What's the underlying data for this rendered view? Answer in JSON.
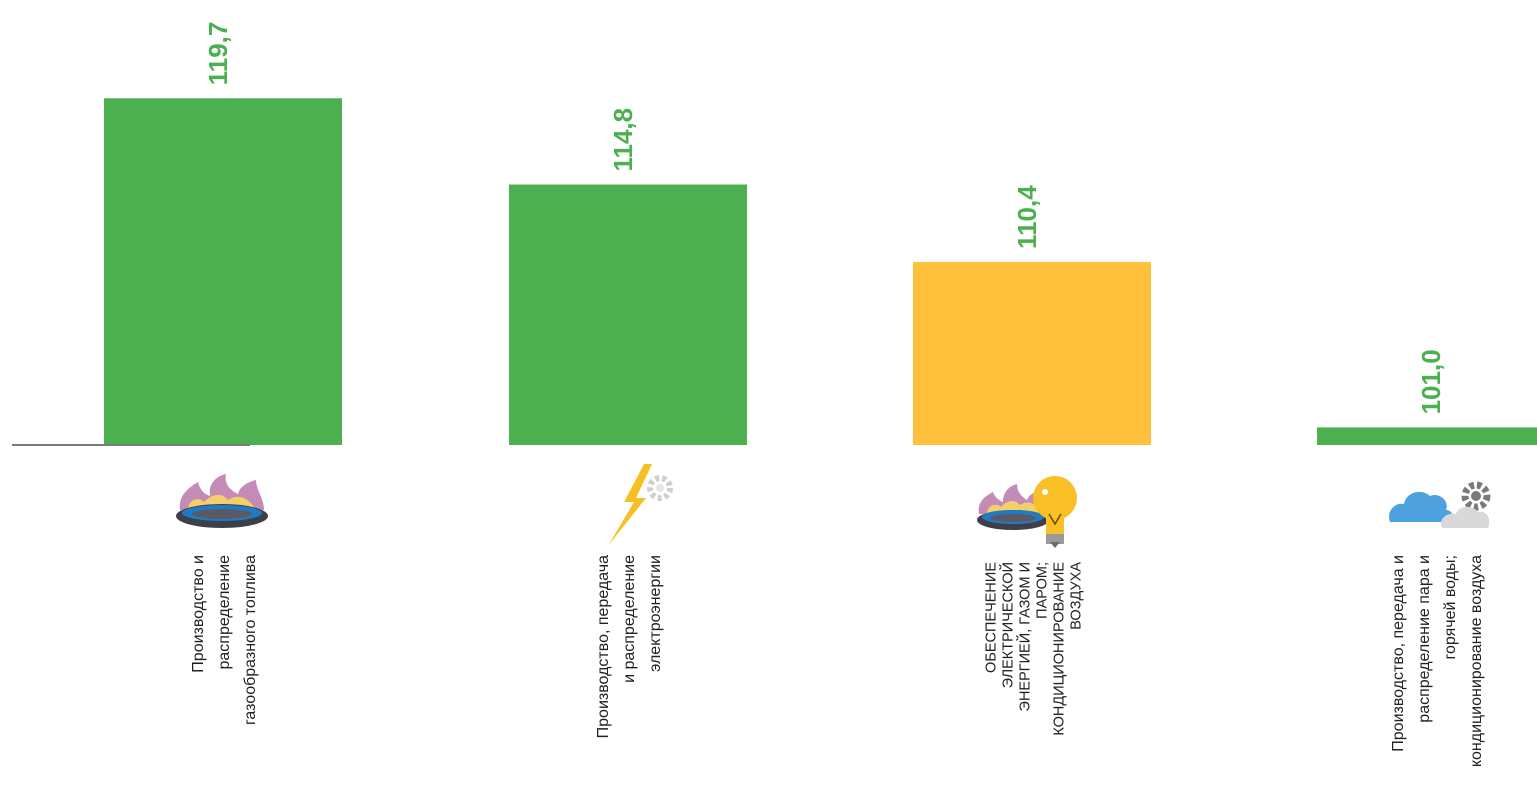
{
  "chart_data": {
    "type": "bar",
    "categories": [
      "Производство и распределение газообразного топлива",
      "Производство, передача и распределение электроэнергии",
      "ОБЕСПЕЧЕНИЕ ЭЛЕКТРИЧЕСКОЙ ЭНЕРГИЕЙ, ГАЗОМ И ПАРОМ; КОНДИЦИОНИРОВАНИЕ ВОЗДУХА",
      "Производство, передача и распределение пара и горячей воды; кондиционирование воздуха"
    ],
    "category_label_lines": [
      [
        "Производство и",
        "распределение",
        "газообразного топлива"
      ],
      [
        "Производство, передача",
        "и распределение",
        "электроэнергии"
      ],
      [
        "ОБЕСПЕЧЕНИЕ",
        "ЭЛЕКТРИЧЕСКОЙ",
        "ЭНЕРГИЕЙ, ГАЗОМ И",
        "ПАРОМ;",
        "КОНДИЦИОНИРОВАНИЕ",
        "ВОЗДУХА"
      ],
      [
        "Производство, передача и",
        "распределение пара и",
        "горячей воды;",
        "кондиционирование воздуха"
      ]
    ],
    "values": [
      119.7,
      114.8,
      110.4,
      101.0
    ],
    "value_labels": [
      "119,7",
      "114,8",
      "110,4",
      "101,0"
    ],
    "bar_colors": [
      "#4caf50",
      "#4caf50",
      "#ffc13b",
      "#4caf50"
    ],
    "label_color": "#4caf50",
    "baseline_value": 100,
    "icons": [
      "gas-burner-icon",
      "lightning-gear-icon",
      "gas-burner-lightbulb-icon",
      "cloud-gear-icon"
    ],
    "title": "",
    "xlabel": "",
    "ylabel": ""
  }
}
